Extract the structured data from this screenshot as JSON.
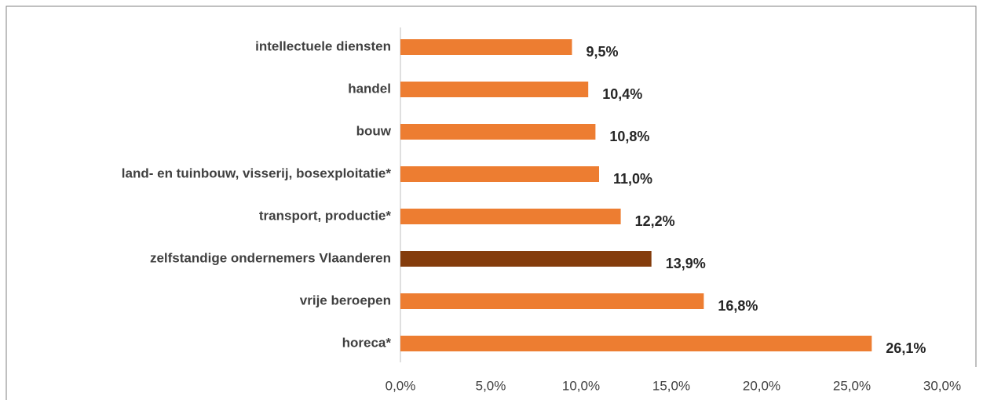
{
  "chart_data": {
    "type": "barh",
    "categories": [
      "intellectuele diensten",
      "handel",
      "bouw",
      "land- en tuinbouw, visserij, bosexploitatie*",
      "transport, productie*",
      "zelfstandige ondernemers Vlaanderen",
      "vrije beroepen",
      "horeca*"
    ],
    "values": [
      9.5,
      10.4,
      10.8,
      11.0,
      12.2,
      13.9,
      16.8,
      26.1
    ],
    "value_labels": [
      "9,5%",
      "10,4%",
      "10,8%",
      "11,0%",
      "12,2%",
      "13,9%",
      "16,8%",
      "26,1%"
    ],
    "colors": [
      "#ED7D31",
      "#ED7D31",
      "#ED7D31",
      "#ED7D31",
      "#ED7D31",
      "#843C0C",
      "#ED7D31",
      "#ED7D31"
    ],
    "xlim": [
      0,
      30
    ],
    "xticks": [
      {
        "value": 0,
        "label": "0,0%"
      },
      {
        "value": 5,
        "label": "5,0%"
      },
      {
        "value": 10,
        "label": "10,0%"
      },
      {
        "value": 15,
        "label": "15,0%"
      },
      {
        "value": 20,
        "label": "20,0%"
      },
      {
        "value": 25,
        "label": "25,0%"
      },
      {
        "value": 30,
        "label": "30,0%"
      }
    ],
    "grid": false
  }
}
